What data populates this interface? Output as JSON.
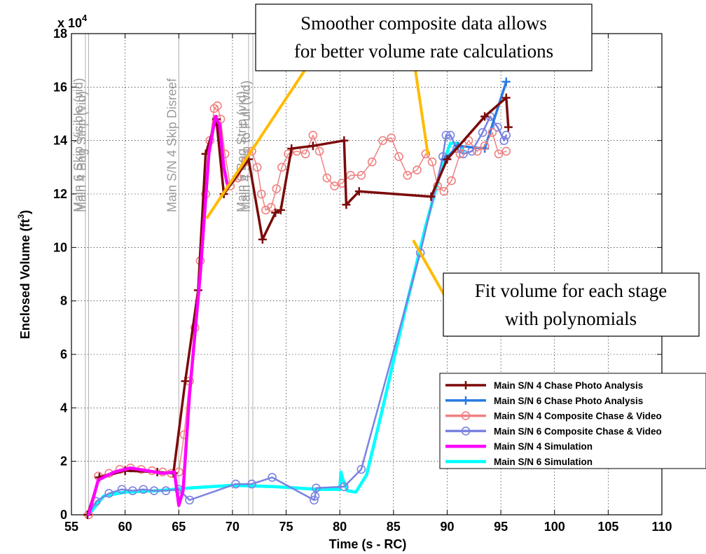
{
  "chart_data": {
    "type": "line",
    "xlabel": "Time (s - RC)",
    "ylabel_main": "Enclosed Volume (ft",
    "ylabel_sup": "3",
    "ylabel_close": ")",
    "y_multiplier_base": "x 10",
    "y_multiplier_exp": "4",
    "xlim": [
      55,
      110
    ],
    "ylim": [
      0,
      18
    ],
    "x_ticks": [
      "55",
      "60",
      "65",
      "70",
      "75",
      "80",
      "85",
      "90",
      "95",
      "100",
      "105",
      "110"
    ],
    "y_ticks": [
      "0",
      "2",
      "4",
      "6",
      "8",
      "10",
      "12",
      "14",
      "16",
      "18"
    ],
    "grid": true,
    "legend_position": "lower-right",
    "colors": {
      "sn4_chase": "#7b0a0a",
      "sn6_chase": "#2a7ae2",
      "sn4_composite": "#f08080",
      "sn6_composite": "#7a82e0",
      "sn4_sim": "#ff00ff",
      "sn6_sim": "#00ffff",
      "callout_line": "#ffbb00",
      "event_line": "#b0b0b0",
      "event_text": "#9a9a9a"
    },
    "event_lines": [
      {
        "x": 56.3,
        "label": "Main 6 Skip Visible (vid)"
      },
      {
        "x": 56.6,
        "label": "Main 4 Bag Strip (vid)"
      },
      {
        "x": 65.0,
        "label": "Main S/N 4 Skip Disreef"
      },
      {
        "x": 71.5,
        "label": "Main 6 Bag Strip (vid)"
      },
      {
        "x": 71.9,
        "label": "Main 4 Skip to Full (vid)"
      }
    ],
    "callouts": [
      {
        "lines": [
          "Smoother composite data allows",
          "for better volume rate calculations"
        ]
      },
      {
        "lines": [
          "Fit volume for each stage",
          "with polynomials"
        ]
      }
    ],
    "series": [
      {
        "key": "sn4_chase",
        "name": "Main S/N 4 Chase Photo Analysis",
        "marker": "plus",
        "points": [
          [
            56.5,
            0
          ],
          [
            57.6,
            1.4
          ],
          [
            60,
            1.65
          ],
          [
            63,
            1.6
          ],
          [
            64.5,
            1.55
          ],
          [
            65.6,
            5
          ],
          [
            66.8,
            8.4
          ],
          [
            67.5,
            13.5
          ],
          [
            68.5,
            14.8
          ],
          [
            69.2,
            12
          ],
          [
            71.5,
            13.3
          ],
          [
            72.8,
            10.3
          ],
          [
            74,
            11.3
          ],
          [
            74.5,
            11.4
          ],
          [
            75.5,
            13.7
          ],
          [
            77.5,
            13.8
          ],
          [
            80.4,
            14.0
          ],
          [
            80.6,
            11.6
          ],
          [
            81.8,
            12.1
          ],
          [
            88.5,
            11.9
          ],
          [
            90,
            13.3
          ],
          [
            93.5,
            14.9
          ],
          [
            95.5,
            15.6
          ],
          [
            95.7,
            14.5
          ]
        ]
      },
      {
        "key": "sn6_chase",
        "name": "Main S/N 6 Chase Photo Analysis",
        "marker": "plus",
        "points": [
          [
            89.8,
            13.3
          ],
          [
            91,
            13.8
          ],
          [
            93.5,
            13.7
          ],
          [
            95.5,
            16.2
          ]
        ]
      },
      {
        "key": "sn4_composite",
        "name": "Main S/N 4 Composite Chase & Video",
        "marker": "circle",
        "points": [
          [
            56.6,
            0
          ],
          [
            57.5,
            1.45
          ],
          [
            58.5,
            1.55
          ],
          [
            59.5,
            1.7
          ],
          [
            60.5,
            1.75
          ],
          [
            61.5,
            1.7
          ],
          [
            62.5,
            1.65
          ],
          [
            63.5,
            1.6
          ],
          [
            64.3,
            1.55
          ],
          [
            65.0,
            1.6
          ],
          [
            65.5,
            3.0
          ],
          [
            66.0,
            5.0
          ],
          [
            66.5,
            7.0
          ],
          [
            67.0,
            9.5
          ],
          [
            67.5,
            12.0
          ],
          [
            67.9,
            14.0
          ],
          [
            68.3,
            15.2
          ],
          [
            68.6,
            15.3
          ],
          [
            68.9,
            14.8
          ],
          [
            69.3,
            13.5
          ],
          [
            69.8,
            12.3
          ],
          [
            70.5,
            12.6
          ],
          [
            71.2,
            13.2
          ],
          [
            71.8,
            13.6
          ],
          [
            72.3,
            13.0
          ],
          [
            72.7,
            12.0
          ],
          [
            73.1,
            11.4
          ],
          [
            73.6,
            11.5
          ],
          [
            74.1,
            12.2
          ],
          [
            74.6,
            13.0
          ],
          [
            75.2,
            13.5
          ],
          [
            76,
            13.6
          ],
          [
            76.8,
            13.5
          ],
          [
            77.5,
            14.2
          ],
          [
            78.1,
            13.6
          ],
          [
            78.8,
            12.6
          ],
          [
            79.5,
            12.3
          ],
          [
            80.2,
            12.4
          ],
          [
            81,
            12.7
          ],
          [
            82,
            12.7
          ],
          [
            83,
            13.2
          ],
          [
            84,
            14.0
          ],
          [
            84.8,
            14.1
          ],
          [
            85.5,
            13.4
          ],
          [
            86.3,
            12.7
          ],
          [
            87.2,
            12.9
          ],
          [
            88,
            13.5
          ],
          [
            88.6,
            13.2
          ],
          [
            89.1,
            12.3
          ],
          [
            89.7,
            12.1
          ],
          [
            90.4,
            12.5
          ],
          [
            91.2,
            13.5
          ],
          [
            92,
            14.0
          ],
          [
            92.8,
            13.6
          ],
          [
            93.5,
            13.8
          ],
          [
            94.2,
            14.3
          ],
          [
            94.8,
            13.5
          ],
          [
            95.5,
            13.6
          ]
        ]
      },
      {
        "key": "sn6_composite",
        "name": "Main S/N 6 Composite Chase & Video",
        "marker": "circle",
        "points": [
          [
            56.6,
            0
          ],
          [
            57.3,
            0.5
          ],
          [
            58.5,
            0.8
          ],
          [
            59.7,
            0.95
          ],
          [
            60.7,
            0.9
          ],
          [
            61.7,
            0.95
          ],
          [
            62.7,
            0.9
          ],
          [
            63.8,
            0.9
          ],
          [
            65.0,
            0.95
          ],
          [
            66.0,
            0.55
          ],
          [
            70.3,
            1.15
          ],
          [
            71.8,
            1.15
          ],
          [
            73.7,
            1.4
          ],
          [
            77.6,
            0.55
          ],
          [
            77.7,
            0.7
          ],
          [
            77.8,
            1.0
          ],
          [
            80.4,
            1.05
          ],
          [
            82.0,
            1.7
          ],
          [
            87.5,
            9.8
          ],
          [
            89.6,
            13.4
          ],
          [
            89.9,
            14.2
          ],
          [
            90.3,
            14.2
          ],
          [
            90.9,
            13.7
          ],
          [
            91.5,
            13.5
          ],
          [
            92.3,
            13.6
          ],
          [
            93.3,
            14.3
          ],
          [
            94.0,
            14.9
          ],
          [
            94.7,
            14.5
          ],
          [
            95.3,
            14.0
          ],
          [
            95.5,
            14.2
          ]
        ]
      },
      {
        "key": "sn4_sim",
        "name": "Main S/N 4 Simulation",
        "marker": "none",
        "points": [
          [
            56.6,
            0
          ],
          [
            57.5,
            1.3
          ],
          [
            59,
            1.6
          ],
          [
            60.5,
            1.75
          ],
          [
            62,
            1.65
          ],
          [
            63.5,
            1.55
          ],
          [
            64.6,
            1.6
          ],
          [
            65.0,
            0.35
          ],
          [
            65.4,
            0.9
          ],
          [
            66.0,
            4.5
          ],
          [
            67.0,
            9.0
          ],
          [
            67.8,
            13.5
          ],
          [
            68.4,
            14.9
          ],
          [
            68.8,
            14.6
          ],
          [
            69.2,
            13.0
          ],
          [
            69.5,
            12.4
          ]
        ]
      },
      {
        "key": "sn6_sim",
        "name": "Main S/N 6 Simulation",
        "marker": "none",
        "points": [
          [
            56.6,
            0
          ],
          [
            58,
            0.7
          ],
          [
            60,
            0.85
          ],
          [
            63,
            0.9
          ],
          [
            66,
            1.0
          ],
          [
            70,
            1.1
          ],
          [
            74,
            1.05
          ],
          [
            78,
            0.95
          ],
          [
            80.0,
            0.95
          ],
          [
            80.1,
            1.6
          ],
          [
            80.3,
            1.3
          ],
          [
            80.7,
            0.9
          ],
          [
            81.5,
            0.85
          ],
          [
            82.5,
            1.5
          ],
          [
            84,
            4.0
          ],
          [
            86,
            7.5
          ],
          [
            88,
            10.8
          ],
          [
            89.5,
            13.0
          ],
          [
            90.3,
            13.9
          ],
          [
            91,
            13.9
          ],
          [
            91.5,
            13.6
          ]
        ]
      }
    ]
  }
}
